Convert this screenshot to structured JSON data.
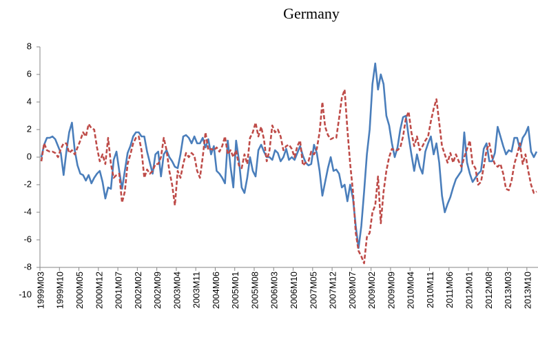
{
  "chart_data": {
    "type": "line",
    "title": "Germany",
    "categories": [
      "1999M03",
      null,
      null,
      null,
      null,
      null,
      null,
      "1999M10",
      null,
      null,
      null,
      null,
      null,
      null,
      "2000M05",
      null,
      null,
      null,
      null,
      null,
      null,
      "2000M12",
      null,
      null,
      null,
      null,
      null,
      null,
      "2001M07",
      null,
      null,
      null,
      null,
      null,
      null,
      "2002M02",
      null,
      null,
      null,
      null,
      null,
      null,
      "2002M09",
      null,
      null,
      null,
      null,
      null,
      null,
      "2003M04",
      null,
      null,
      null,
      null,
      null,
      null,
      "2003M11",
      null,
      null,
      null,
      null,
      null,
      null,
      "2004M06",
      null,
      null,
      null,
      null,
      null,
      null,
      "2005M01",
      null,
      null,
      null,
      null,
      null,
      null,
      "2005M08",
      null,
      null,
      null,
      null,
      null,
      null,
      "2006M03",
      null,
      null,
      null,
      null,
      null,
      null,
      "2006M10",
      null,
      null,
      null,
      null,
      null,
      null,
      "2007M05",
      null,
      null,
      null,
      null,
      null,
      null,
      "2007M12",
      null,
      null,
      null,
      null,
      null,
      null,
      "2008M07",
      null,
      null,
      null,
      null,
      null,
      null,
      "2009M02",
      null,
      null,
      null,
      null,
      null,
      null,
      "2009M09",
      null,
      null,
      null,
      null,
      null,
      null,
      "2010M04",
      null,
      null,
      null,
      null,
      null,
      null,
      "2010M11",
      null,
      null,
      null,
      null,
      null,
      null,
      "2011M06",
      null,
      null,
      null,
      null,
      null,
      null,
      "2012M01",
      null,
      null,
      null,
      null,
      null,
      null,
      "2012M08",
      null,
      null,
      null,
      null,
      null,
      null,
      "2013M03",
      null,
      null,
      null,
      null,
      null,
      null,
      "2013M10",
      null,
      null,
      null
    ],
    "series": [
      {
        "color": "#4a7ebb",
        "dashed": false,
        "values": [
          0.0,
          0.9,
          1.4,
          1.4,
          1.5,
          1.3,
          0.8,
          0.3,
          -1.3,
          0.4,
          1.8,
          2.5,
          0.5,
          -0.6,
          -1.2,
          -1.3,
          -1.7,
          -1.3,
          -1.9,
          -1.5,
          -1.2,
          -1.0,
          -1.8,
          -3.0,
          -2.2,
          -2.3,
          -0.2,
          0.4,
          -1.0,
          -2.3,
          -1.0,
          0.3,
          0.8,
          1.5,
          1.8,
          1.8,
          1.5,
          1.5,
          0.4,
          -0.4,
          -1.2,
          0.2,
          0.4,
          -1.4,
          0.2,
          0.5,
          0.0,
          -0.3,
          -0.7,
          -0.8,
          0.2,
          1.5,
          1.6,
          1.4,
          1.0,
          1.5,
          1.0,
          1.0,
          1.4,
          0.7,
          1.3,
          0.2,
          0.8,
          -1.0,
          -1.2,
          -1.5,
          -1.9,
          1.2,
          -0.7,
          -2.2,
          1.2,
          -0.2,
          -2.2,
          -2.6,
          -1.5,
          0.0,
          -1.0,
          -1.4,
          0.5,
          0.9,
          0.4,
          0.0,
          0.0,
          -0.2,
          0.5,
          0.3,
          -0.3,
          0.0,
          0.6,
          -0.2,
          0.0,
          -0.2,
          0.3,
          0.8,
          0.1,
          -0.4,
          -0.6,
          -0.5,
          0.9,
          0.3,
          -1.0,
          -2.8,
          -1.8,
          -0.8,
          0.0,
          -1.0,
          -0.9,
          -1.2,
          -2.2,
          -2.0,
          -3.2,
          -2.0,
          -3.0,
          -5.0,
          -6.6,
          -5.0,
          -2.5,
          0.2,
          2.0,
          5.3,
          6.8,
          4.9,
          6.0,
          5.3,
          3.0,
          2.3,
          1.0,
          0.0,
          0.7,
          2.0,
          2.9,
          3.0,
          1.5,
          0.2,
          -1.0,
          0.2,
          -0.7,
          -1.2,
          0.4,
          1.0,
          1.5,
          0.2,
          1.0,
          -0.4,
          -2.8,
          -4.0,
          -3.4,
          -2.9,
          -2.2,
          -1.6,
          -1.3,
          -1.0,
          1.8,
          -0.4,
          -1.2,
          -1.8,
          -1.5,
          -1.2,
          -1.0,
          0.6,
          1.0,
          -0.3,
          -0.3,
          0.3,
          2.2,
          1.5,
          0.8,
          0.2,
          0.5,
          0.4,
          1.4,
          1.4,
          0.6,
          1.4,
          1.7,
          2.2,
          0.4,
          0.0,
          0.4
        ]
      },
      {
        "color": "#be4b48",
        "dashed": true,
        "values": [
          -0.3,
          1.0,
          0.5,
          0.4,
          0.4,
          0.3,
          0.0,
          0.6,
          1.0,
          1.0,
          0.3,
          0.5,
          0.2,
          0.7,
          1.2,
          1.8,
          1.5,
          2.4,
          2.1,
          2.0,
          0.7,
          -0.3,
          0.2,
          -0.5,
          1.4,
          -0.5,
          -1.5,
          -1.3,
          -1.2,
          -3.3,
          -2.5,
          -0.5,
          0.2,
          1.0,
          1.4,
          1.5,
          0.5,
          -1.5,
          -0.9,
          -1.2,
          -1.0,
          -0.5,
          -0.5,
          0.0,
          1.4,
          0.5,
          -1.0,
          -2.0,
          -3.5,
          -1.0,
          -1.5,
          -0.5,
          0.3,
          0.0,
          0.3,
          0.1,
          -1.0,
          -1.5,
          0.0,
          1.8,
          0.5,
          0.6,
          0.5,
          0.7,
          0.4,
          0.8,
          1.5,
          0.2,
          0.5,
          0.0,
          0.5,
          -0.6,
          -0.8,
          0.2,
          -0.5,
          1.4,
          1.8,
          2.5,
          1.5,
          2.2,
          1.3,
          -0.3,
          0.5,
          2.3,
          1.8,
          2.0,
          1.5,
          0.5,
          0.8,
          0.9,
          0.6,
          0.0,
          0.8,
          1.2,
          -0.6,
          -0.4,
          -0.3,
          0.4,
          0.2,
          0.6,
          1.8,
          4.0,
          2.2,
          1.6,
          1.3,
          1.4,
          1.4,
          2.8,
          4.3,
          4.9,
          2.0,
          -0.5,
          -2.5,
          -5.5,
          -6.8,
          -7.2,
          -7.7,
          -5.8,
          -5.5,
          -4.0,
          -3.5,
          -1.4,
          -4.8,
          -2.5,
          -1.0,
          0.0,
          0.6,
          0.5,
          0.5,
          0.7,
          1.5,
          2.8,
          3.3,
          1.8,
          0.8,
          1.5,
          0.5,
          0.8,
          1.2,
          1.5,
          2.6,
          3.5,
          4.2,
          2.5,
          0.8,
          0.2,
          -0.4,
          0.3,
          -0.4,
          0.2,
          -0.3,
          -0.7,
          0.0,
          0.6,
          1.2,
          -0.5,
          -0.8,
          -2.0,
          -1.8,
          -0.7,
          0.5,
          1.0,
          0.0,
          -0.5,
          -0.7,
          -0.5,
          -1.2,
          -2.3,
          -2.4,
          -1.7,
          -0.5,
          0.2,
          1.0,
          -0.5,
          0.2,
          -1.0,
          -2.0,
          -2.6,
          -2.5
        ]
      }
    ],
    "ylim": [
      -10,
      8
    ],
    "yticks": [
      -10,
      -8,
      -6,
      -4,
      -2,
      0,
      2,
      4,
      6,
      8
    ],
    "x_axis_at": -8,
    "grid": false
  }
}
